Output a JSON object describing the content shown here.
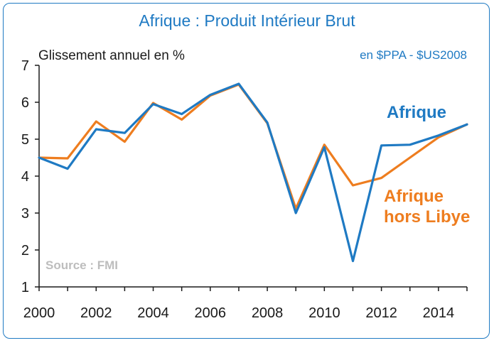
{
  "chart_data": {
    "type": "line",
    "title": "Afrique : Produit Intérieur Brut",
    "ylabel": "Glissement annuel en %",
    "unit_note": "en $PPA - $US2008",
    "source": "Source : FMI",
    "x": [
      2000,
      2001,
      2002,
      2003,
      2004,
      2005,
      2006,
      2007,
      2008,
      2009,
      2010,
      2011,
      2012,
      2013,
      2014,
      2015
    ],
    "xticks": [
      "2000",
      "2002",
      "2004",
      "2006",
      "2008",
      "2010",
      "2012",
      "2014"
    ],
    "yticks": [
      "1",
      "2",
      "3",
      "4",
      "5",
      "6",
      "7"
    ],
    "xlim": [
      2000,
      2015
    ],
    "ylim": [
      1,
      7
    ],
    "grid": false,
    "series": [
      {
        "name": "Afrique",
        "color": "#1f7ac3",
        "values": [
          4.5,
          4.2,
          5.27,
          5.17,
          5.95,
          5.68,
          6.2,
          6.5,
          5.45,
          3.0,
          4.78,
          1.7,
          4.83,
          4.85,
          5.1,
          5.4
        ]
      },
      {
        "name": "Afrique hors Libye",
        "color": "#ee7d1f",
        "values": [
          4.5,
          4.48,
          5.48,
          4.93,
          5.98,
          5.53,
          6.18,
          6.48,
          5.43,
          3.12,
          4.85,
          3.75,
          3.95,
          4.5,
          5.05,
          5.4
        ]
      }
    ]
  },
  "legend": {
    "afrique": "Afrique",
    "hors_line1": "Afrique",
    "hors_line2": "hors Libye"
  }
}
